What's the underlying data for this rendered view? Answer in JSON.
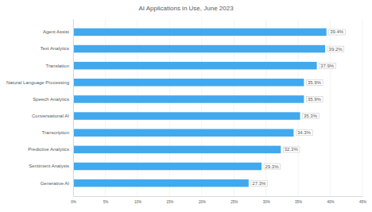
{
  "chart_data": {
    "type": "bar",
    "title": "AI Applications in Use, June 2023",
    "orientation": "horizontal",
    "categories": [
      "Agent Assist",
      "Text Analytics",
      "Translation",
      "Natural Language Processing",
      "Speech Analytics",
      "Conversational AI",
      "Transcription",
      "Predictive Analytics",
      "Sentiment Analysis",
      "Generative AI"
    ],
    "values": [
      39.4,
      39.2,
      37.9,
      35.9,
      35.9,
      35.3,
      34.3,
      32.3,
      29.3,
      27.3
    ],
    "value_labels": [
      "39.4%",
      "39.2%",
      "37.9%",
      "35.9%",
      "35.9%",
      "35.3%",
      "34.3%",
      "32.3%",
      "29.3%",
      "27.3%"
    ],
    "data_labels": true,
    "color": "#41a9ee",
    "xlim": [
      0,
      45
    ],
    "xticks": [
      {
        "value": 0,
        "label": "0%"
      },
      {
        "value": 5,
        "label": "5%"
      },
      {
        "value": 10,
        "label": "10%"
      },
      {
        "value": 15,
        "label": "15%"
      },
      {
        "value": 20,
        "label": "20%"
      },
      {
        "value": 25,
        "label": "25%"
      },
      {
        "value": 30,
        "label": "30%"
      },
      {
        "value": 35,
        "label": "35%"
      },
      {
        "value": 40,
        "label": "40%"
      },
      {
        "value": 45,
        "label": "45%"
      }
    ],
    "grid": true
  }
}
